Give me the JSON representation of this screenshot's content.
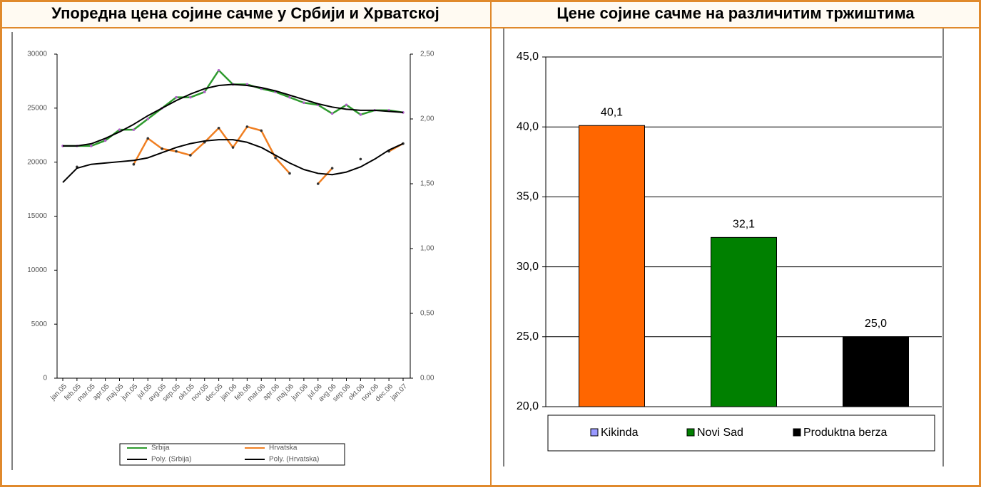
{
  "chart_data": [
    {
      "type": "line",
      "title": "Упоредна цена сојине сачме у Србији и Хрватској",
      "categories": [
        "jan.05",
        "feb.05",
        "mar.05",
        "apr.05",
        "maj.05",
        "jun.05",
        "jul.05",
        "avg.05",
        "sep.05",
        "okt.05",
        "nov.05",
        "dec.05",
        "jan.06",
        "feb.06",
        "mar.06",
        "apr.06",
        "maj.06",
        "jun.06",
        "jul.06",
        "avg.06",
        "sep.06",
        "okt.06",
        "nov.06",
        "dec.06",
        "jan.07"
      ],
      "ylim": [
        0,
        30000
      ],
      "yticks": [
        0,
        5000,
        10000,
        15000,
        20000,
        25000,
        30000
      ],
      "y2lim": [
        0,
        2.5
      ],
      "y2ticks": [
        {
          "value": 0,
          "label": "0.00"
        },
        {
          "value": 0.5,
          "label": "0,50"
        },
        {
          "value": 1,
          "label": "1,00"
        },
        {
          "value": 1.5,
          "label": "1,50"
        },
        {
          "value": 2,
          "label": "2,00"
        },
        {
          "value": 2.5,
          "label": "2,50"
        }
      ],
      "series": [
        {
          "name": "Srbija",
          "color": "#2e9a2e",
          "marker_color": "#b05cc8",
          "values": [
            21500,
            21500,
            21500,
            22000,
            23000,
            23000,
            24000,
            25000,
            26000,
            26000,
            26500,
            28500,
            27200,
            27200,
            26800,
            26500,
            26000,
            25500,
            25300,
            24500,
            25300,
            24400,
            24800,
            24800,
            24600
          ]
        },
        {
          "name": "Hrvatska",
          "color": "#f07f22",
          "marker_color": "#333333",
          "axis": "y2",
          "values": [
            null,
            1.63,
            null,
            null,
            null,
            1.65,
            1.85,
            1.77,
            1.75,
            1.72,
            1.82,
            1.93,
            1.78,
            1.94,
            1.91,
            1.7,
            1.58,
            null,
            1.5,
            1.62,
            null,
            1.69,
            null,
            1.75,
            1.81
          ]
        },
        {
          "name": "Poly. (Srbija)",
          "color": "#000000",
          "values": [
            21500,
            21500,
            21700,
            22200,
            22800,
            23500,
            24300,
            25000,
            25700,
            26300,
            26800,
            27100,
            27200,
            27100,
            26900,
            26600,
            26200,
            25800,
            25400,
            25100,
            24900,
            24800,
            24800,
            24700,
            24600
          ]
        },
        {
          "name": "Poly. (Hrvatska)",
          "color": "#000000",
          "axis": "y2",
          "values": [
            1.51,
            1.62,
            1.65,
            1.66,
            1.67,
            1.68,
            1.7,
            1.74,
            1.78,
            1.81,
            1.83,
            1.84,
            1.84,
            1.82,
            1.78,
            1.72,
            1.66,
            1.61,
            1.58,
            1.57,
            1.59,
            1.63,
            1.69,
            1.76,
            1.81
          ]
        }
      ]
    },
    {
      "type": "bar",
      "title": "Цене сојине сачме на различитим тржиштима",
      "categories": [
        "Kikinda",
        "Novi Sad",
        "Produktna berza"
      ],
      "values": [
        40.1,
        32.1,
        25.0
      ],
      "value_labels": [
        "40,1",
        "32,1",
        "25,0"
      ],
      "colors": [
        "#ff6600",
        "#008000",
        "#000000"
      ],
      "legend_colors": [
        "#9999ff",
        "#008000",
        "#000000"
      ],
      "ylim": [
        20,
        45
      ],
      "yticks": [
        {
          "value": 20,
          "label": "20,0"
        },
        {
          "value": 25,
          "label": "25,0"
        },
        {
          "value": 30,
          "label": "30,0"
        },
        {
          "value": 35,
          "label": "35,0"
        },
        {
          "value": 40,
          "label": "40,0"
        },
        {
          "value": 45,
          "label": "45,0"
        }
      ],
      "grid": true
    }
  ]
}
